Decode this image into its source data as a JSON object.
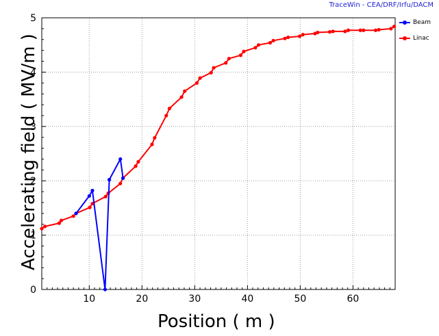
{
  "watermark": "TraceWin - CEA/DRF/Irfu/DACM",
  "chart_data": {
    "type": "line",
    "xlabel": "Position ( m )",
    "ylabel": "Accelerating field ( MV/m )",
    "xlim": [
      1,
      68
    ],
    "ylim": [
      0,
      5
    ],
    "xticks": [
      10,
      20,
      30,
      40,
      50,
      60
    ],
    "yticks": [
      0,
      1,
      2,
      3,
      4,
      5
    ],
    "grid": true,
    "legend_position": "top-right, outside plot",
    "series": [
      {
        "name": "Beam",
        "color": "#0000ff",
        "points": [
          [
            7.5,
            1.4
          ],
          [
            10.0,
            1.72
          ],
          [
            10.6,
            1.82
          ],
          [
            13.0,
            0.0
          ],
          [
            13.8,
            2.02
          ],
          [
            15.9,
            2.4
          ],
          [
            16.4,
            2.05
          ]
        ]
      },
      {
        "name": "Linac",
        "color": "#ff0000",
        "points": [
          [
            1.0,
            1.12
          ],
          [
            1.6,
            1.16
          ],
          [
            4.3,
            1.22
          ],
          [
            4.7,
            1.27
          ],
          [
            7.0,
            1.35
          ],
          [
            7.5,
            1.4
          ],
          [
            10.1,
            1.51
          ],
          [
            10.6,
            1.58
          ],
          [
            13.1,
            1.71
          ],
          [
            13.6,
            1.77
          ],
          [
            15.9,
            1.95
          ],
          [
            16.4,
            2.05
          ],
          [
            18.8,
            2.27
          ],
          [
            19.3,
            2.35
          ],
          [
            21.9,
            2.67
          ],
          [
            22.4,
            2.79
          ],
          [
            24.6,
            3.2
          ],
          [
            25.2,
            3.33
          ],
          [
            27.5,
            3.54
          ],
          [
            28.1,
            3.65
          ],
          [
            30.4,
            3.8
          ],
          [
            31.0,
            3.89
          ],
          [
            33.1,
            3.99
          ],
          [
            33.6,
            4.08
          ],
          [
            35.9,
            4.17
          ],
          [
            36.5,
            4.25
          ],
          [
            38.7,
            4.31
          ],
          [
            39.3,
            4.38
          ],
          [
            41.5,
            4.45
          ],
          [
            42.1,
            4.5
          ],
          [
            44.3,
            4.54
          ],
          [
            44.9,
            4.58
          ],
          [
            47.1,
            4.62
          ],
          [
            47.7,
            4.64
          ],
          [
            49.9,
            4.66
          ],
          [
            50.5,
            4.69
          ],
          [
            52.8,
            4.71
          ],
          [
            53.3,
            4.73
          ],
          [
            55.6,
            4.74
          ],
          [
            56.2,
            4.75
          ],
          [
            58.5,
            4.75
          ],
          [
            59.1,
            4.77
          ],
          [
            61.4,
            4.77
          ],
          [
            62.0,
            4.77
          ],
          [
            64.3,
            4.77
          ],
          [
            64.9,
            4.78
          ],
          [
            67.2,
            4.8
          ],
          [
            67.8,
            4.84
          ]
        ]
      }
    ]
  }
}
